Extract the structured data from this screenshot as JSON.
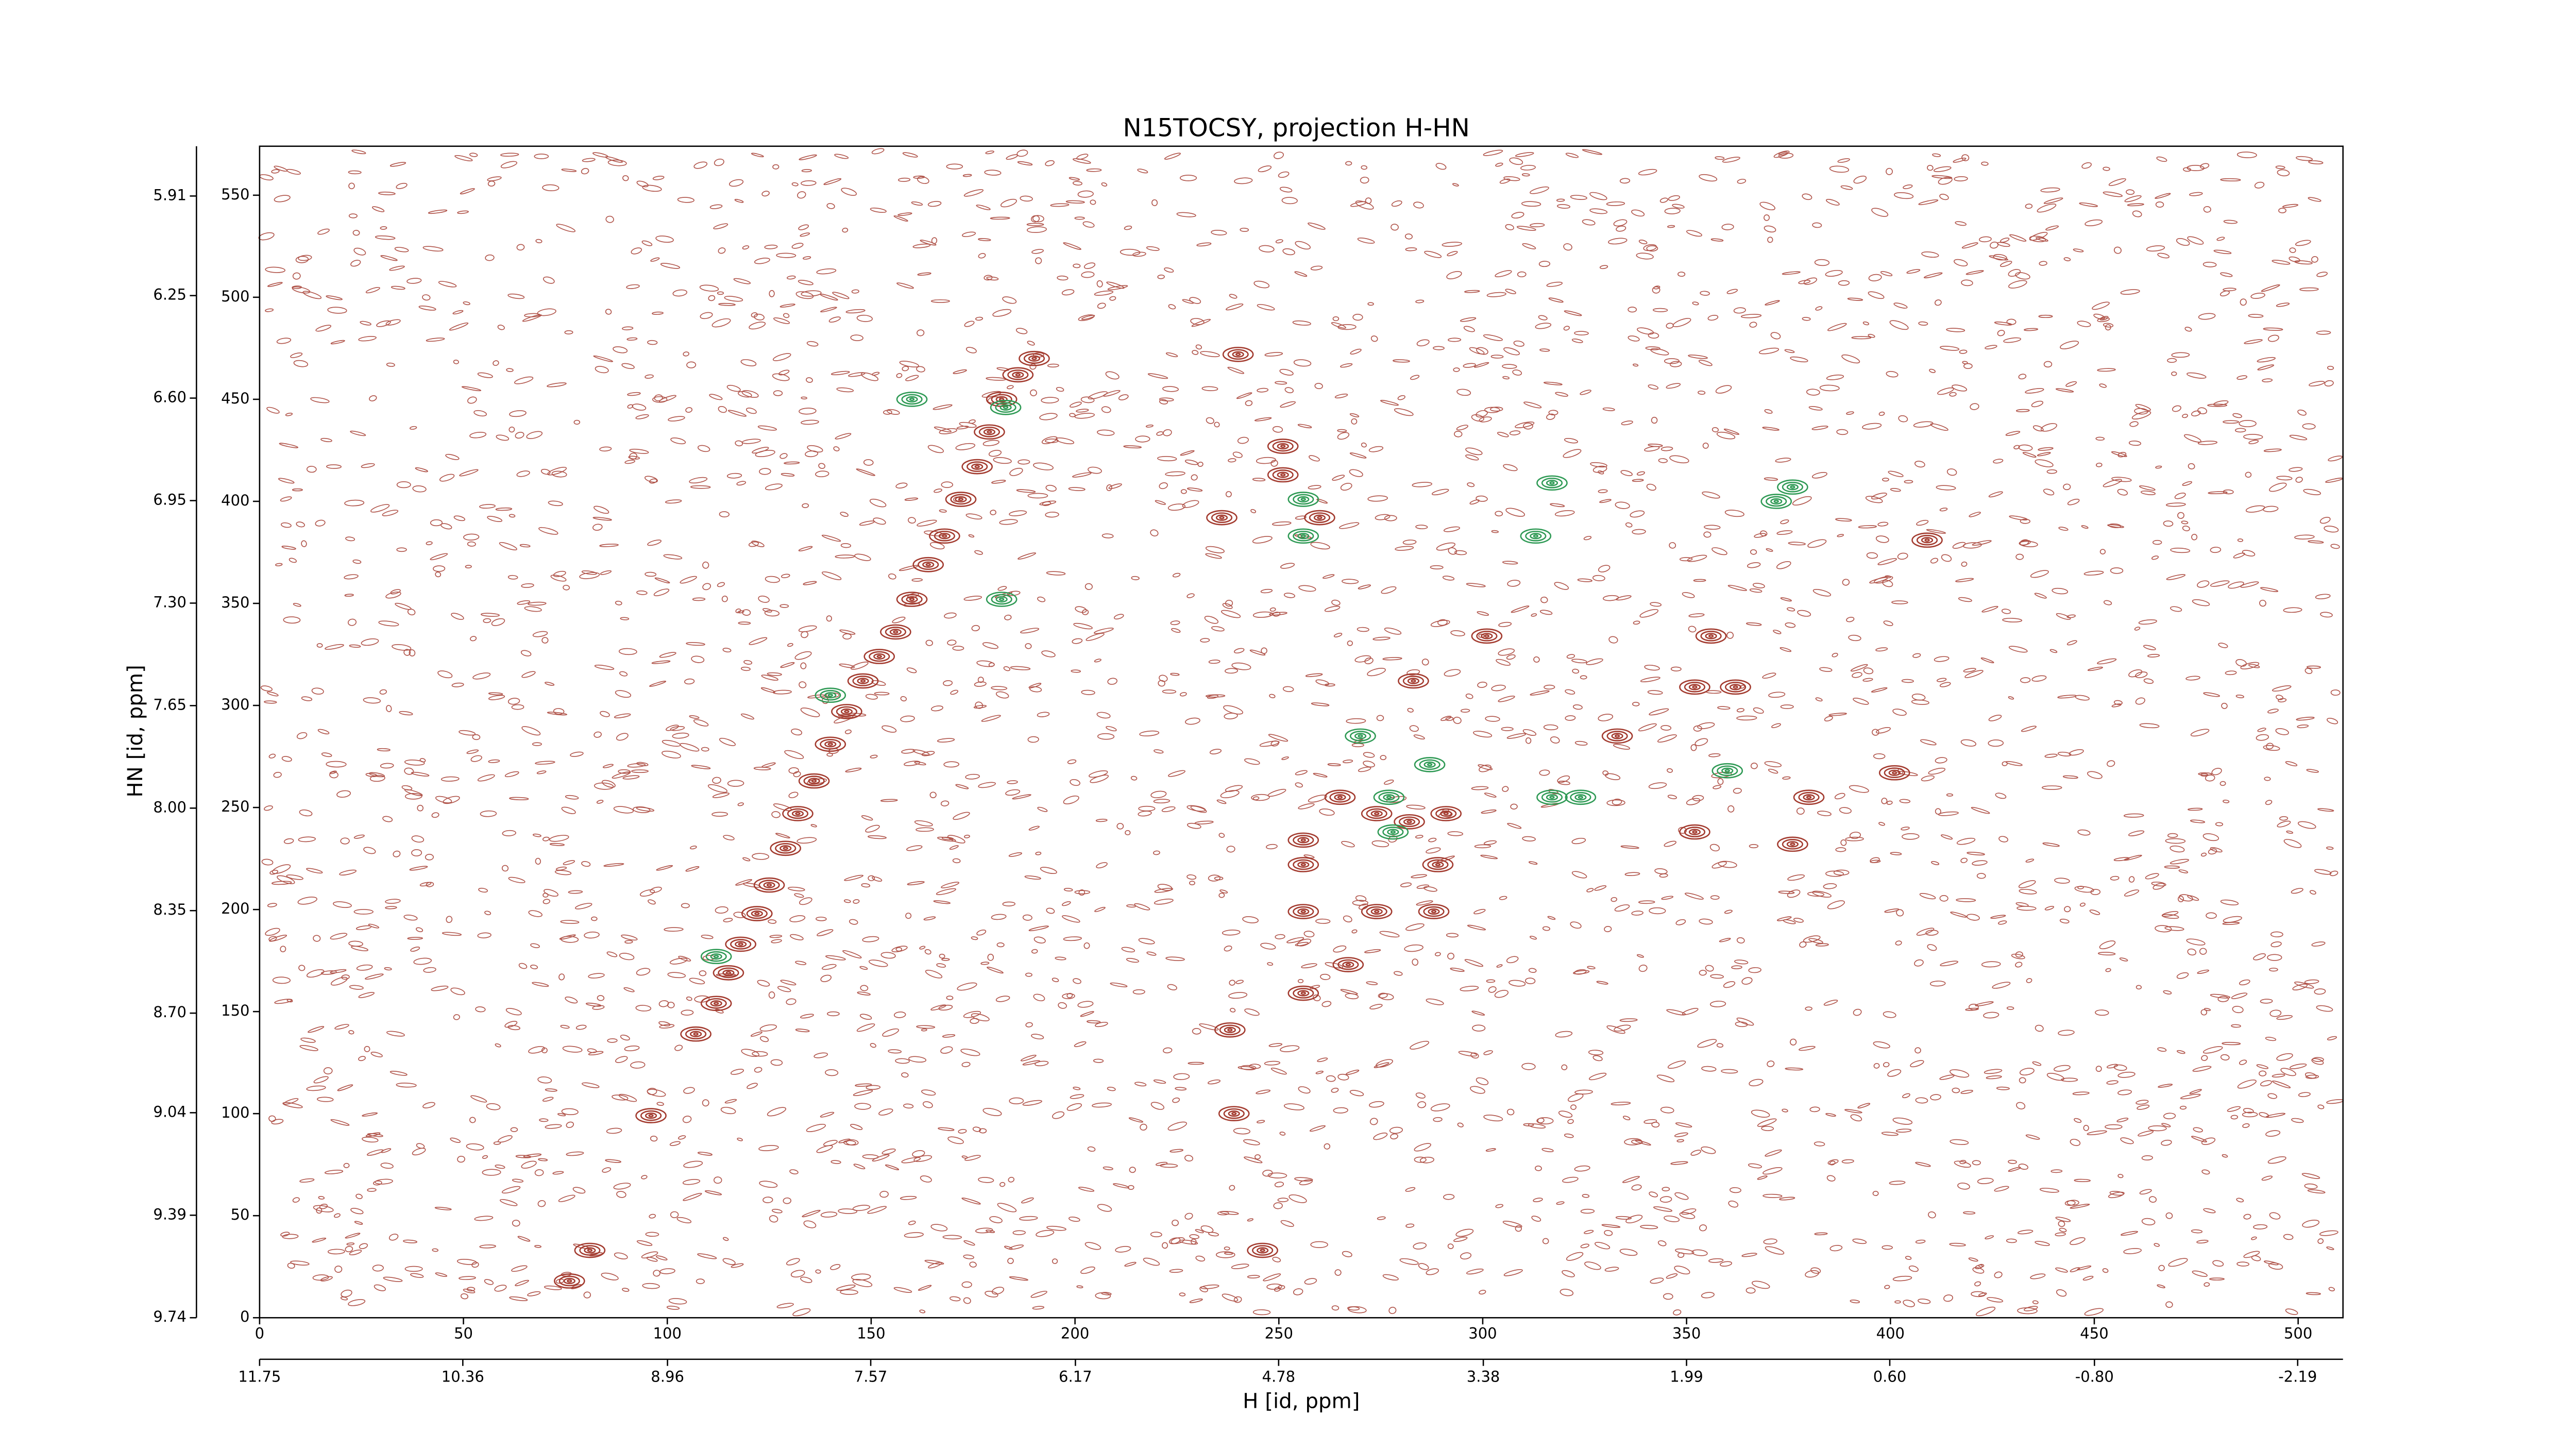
{
  "chart_data": {
    "type": "contour",
    "title": "N15TOCSY, projection H-HN",
    "xlabel": "H [id, ppm]",
    "ylabel": "HN [id, ppm]",
    "xlim": [
      0,
      511
    ],
    "xticks": [
      0,
      50,
      100,
      150,
      200,
      250,
      300,
      350,
      400,
      450,
      500
    ],
    "ylim": [
      0,
      574
    ],
    "yticks": [
      0,
      50,
      100,
      150,
      200,
      250,
      300,
      350,
      400,
      450,
      500,
      550
    ],
    "x2lim": [
      11.75,
      -2.5
    ],
    "x2ticks": [
      11.75,
      10.36,
      8.96,
      7.57,
      6.17,
      4.78,
      3.38,
      1.99,
      {
        "value": 0.6,
        "label": "0.60"
      },
      {
        "value": -0.8,
        "label": "-0.80"
      },
      -2.19
    ],
    "y2lim": [
      9.74,
      5.74
    ],
    "y2ticks": [
      9.74,
      9.39,
      9.04,
      {
        "value": 8.7,
        "label": "8.70"
      },
      8.35,
      {
        "value": 8,
        "label": "8.00"
      },
      7.65,
      {
        "value": 7.3,
        "label": "7.30"
      },
      6.95,
      {
        "value": 6.6,
        "label": "6.60"
      },
      6.25,
      5.91
    ],
    "noise_color": "#b0544a",
    "series": [
      {
        "color": "#a33b2f",
        "x": [
          96,
          76,
          81,
          107,
          112,
          115,
          118,
          122,
          125,
          129,
          132,
          136,
          140,
          144,
          148,
          152,
          156,
          160,
          164,
          168,
          172,
          176,
          179,
          182,
          186,
          190,
          240,
          238,
          239,
          246,
          256,
          256,
          256,
          265,
          274,
          282,
          291,
          289,
          288,
          283,
          301,
          333,
          356,
          362,
          352,
          380,
          401,
          409,
          352,
          376,
          251,
          251,
          260,
          236,
          274,
          267,
          256
        ],
        "values": [
          99,
          18,
          33,
          139,
          154,
          169,
          183,
          198,
          212,
          230,
          247,
          263,
          281,
          297,
          312,
          324,
          336,
          352,
          369,
          383,
          401,
          417,
          434,
          450,
          462,
          470,
          472,
          141,
          100,
          33,
          234,
          222,
          199,
          255,
          247,
          243,
          247,
          222,
          199,
          312,
          334,
          285,
          334,
          309,
          309,
          255,
          267,
          381,
          238,
          232,
          427,
          413,
          392,
          392,
          199,
          173,
          159
        ]
      },
      {
        "color": "#2f9a55",
        "x": [
          256,
          256,
          270,
          277,
          287,
          278,
          317,
          313,
          317,
          324,
          360,
          376,
          372,
          160,
          183,
          182,
          140,
          112
        ],
        "values": [
          401,
          383,
          285,
          255,
          271,
          238,
          409,
          383,
          255,
          255,
          268,
          407,
          400,
          450,
          446,
          352,
          305,
          177
        ]
      }
    ]
  }
}
